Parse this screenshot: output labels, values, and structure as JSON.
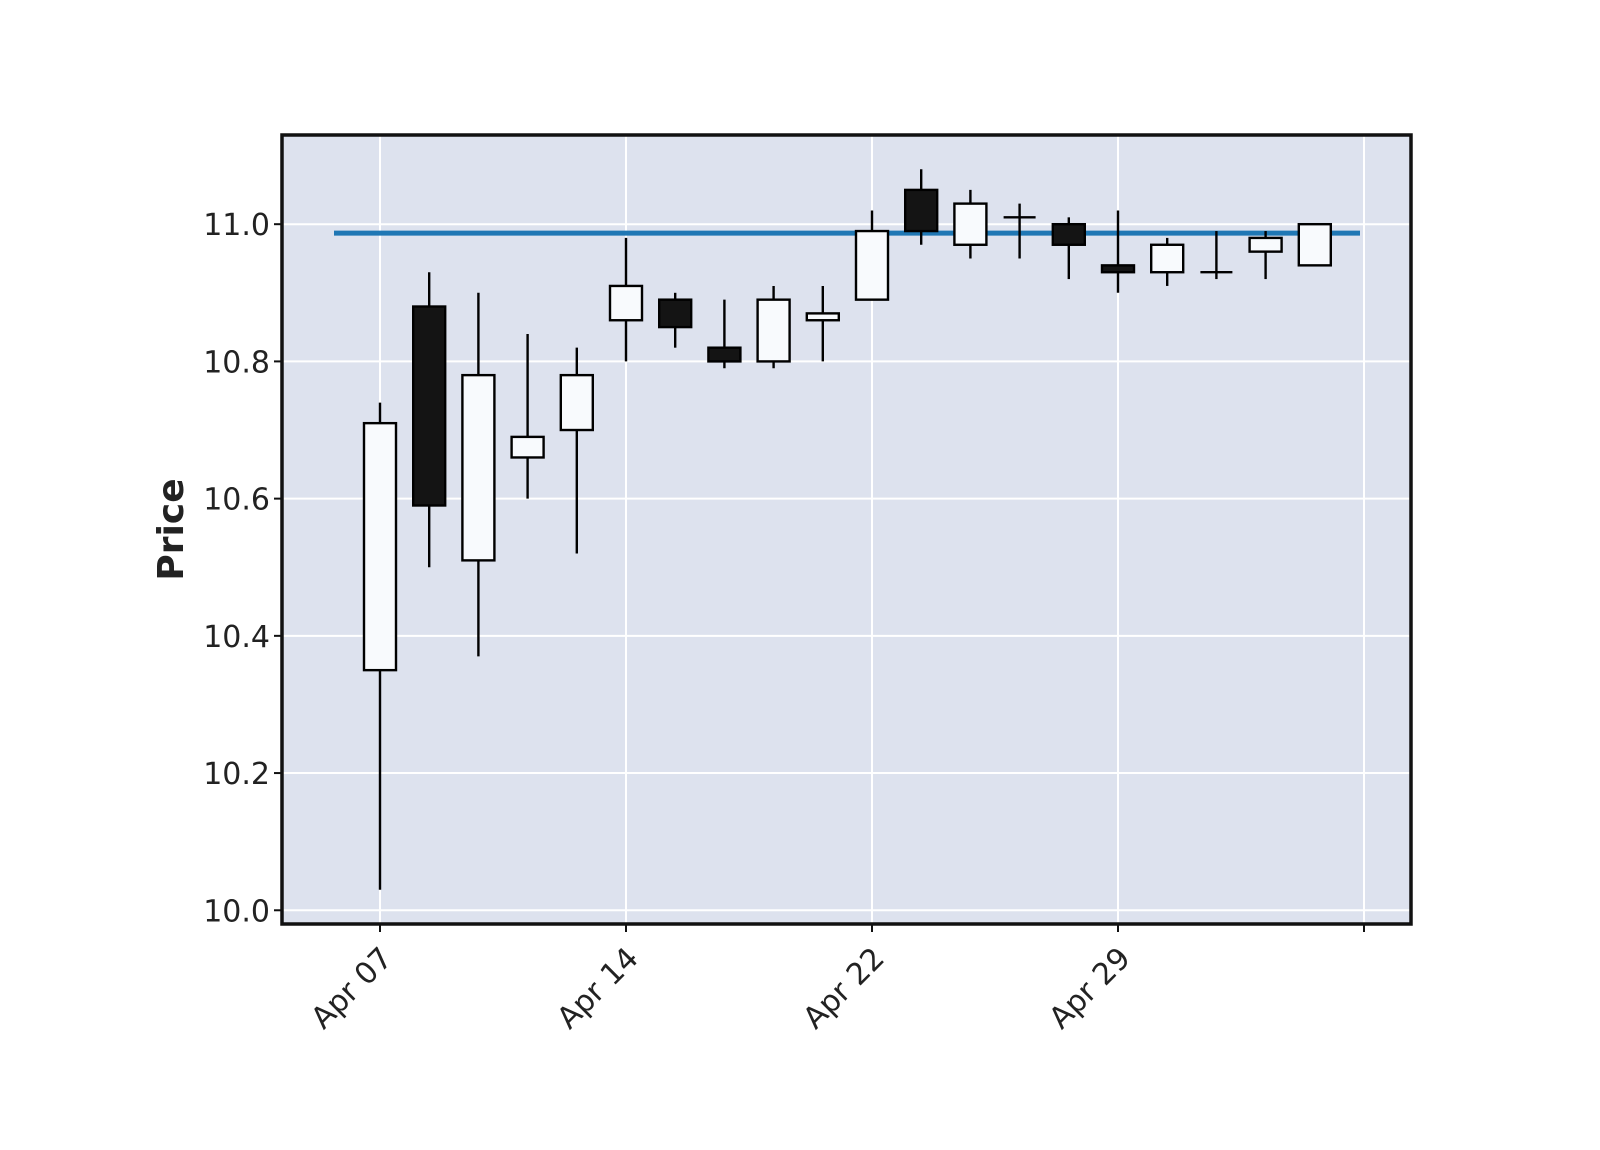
{
  "chart_data": {
    "type": "candlestick",
    "title": "",
    "xlabel": "",
    "ylabel": "Price",
    "ylim": [
      9.98,
      11.13
    ],
    "y_ticks": [
      {
        "value": 10.0,
        "label": "10.0"
      },
      {
        "value": 10.2,
        "label": "10.2"
      },
      {
        "value": 10.4,
        "label": "10.4"
      },
      {
        "value": 10.6,
        "label": "10.6"
      },
      {
        "value": 10.8,
        "label": "10.8"
      },
      {
        "value": 11.0,
        "label": "11.0"
      }
    ],
    "x_ticks": [
      {
        "index": 0,
        "label": "Apr 07"
      },
      {
        "index": 5,
        "label": "Apr 14"
      },
      {
        "index": 10,
        "label": "Apr 22"
      },
      {
        "index": 15,
        "label": "Apr 29"
      },
      {
        "index": 20,
        "label": ""
      }
    ],
    "candles": [
      {
        "date": "Apr 07",
        "open": 10.35,
        "high": 10.74,
        "low": 10.03,
        "close": 10.71
      },
      {
        "date": "Apr 08",
        "open": 10.88,
        "high": 10.93,
        "low": 10.5,
        "close": 10.59
      },
      {
        "date": "Apr 09",
        "open": 10.51,
        "high": 10.9,
        "low": 10.37,
        "close": 10.78
      },
      {
        "date": "Apr 10",
        "open": 10.66,
        "high": 10.84,
        "low": 10.6,
        "close": 10.69
      },
      {
        "date": "Apr 11",
        "open": 10.7,
        "high": 10.82,
        "low": 10.52,
        "close": 10.78
      },
      {
        "date": "Apr 14",
        "open": 10.86,
        "high": 10.98,
        "low": 10.8,
        "close": 10.91
      },
      {
        "date": "Apr 15",
        "open": 10.89,
        "high": 10.9,
        "low": 10.82,
        "close": 10.85
      },
      {
        "date": "Apr 16",
        "open": 10.82,
        "high": 10.89,
        "low": 10.79,
        "close": 10.8
      },
      {
        "date": "Apr 17",
        "open": 10.8,
        "high": 10.91,
        "low": 10.79,
        "close": 10.89
      },
      {
        "date": "Apr 18",
        "open": 10.86,
        "high": 10.91,
        "low": 10.8,
        "close": 10.87
      },
      {
        "date": "Apr 22",
        "open": 10.89,
        "high": 11.02,
        "low": 10.89,
        "close": 10.99
      },
      {
        "date": "Apr 23",
        "open": 11.05,
        "high": 11.08,
        "low": 10.97,
        "close": 10.99
      },
      {
        "date": "Apr 24",
        "open": 10.97,
        "high": 11.05,
        "low": 10.95,
        "close": 11.03
      },
      {
        "date": "Apr 25",
        "open": 11.01,
        "high": 11.03,
        "low": 10.95,
        "close": 11.01
      },
      {
        "date": "Apr 28",
        "open": 11.0,
        "high": 11.01,
        "low": 10.92,
        "close": 10.97
      },
      {
        "date": "Apr 29",
        "open": 10.94,
        "high": 11.02,
        "low": 10.9,
        "close": 10.93
      },
      {
        "date": "Apr 30",
        "open": 10.93,
        "high": 10.98,
        "low": 10.91,
        "close": 10.97
      },
      {
        "date": "May 01",
        "open": 10.93,
        "high": 10.99,
        "low": 10.92,
        "close": 10.93
      },
      {
        "date": "May 02",
        "open": 10.96,
        "high": 10.99,
        "low": 10.92,
        "close": 10.98
      },
      {
        "date": "May 05",
        "open": 10.94,
        "high": 11.0,
        "low": 10.94,
        "close": 11.0
      }
    ],
    "hline": {
      "value": 10.987,
      "color": "#1f77b4"
    },
    "colors": {
      "plot_bg": "#dde2ee",
      "grid": "#ffffff",
      "up_fill": "#f8fafd",
      "down_fill": "#141414",
      "edge": "#000000"
    },
    "grid": true
  }
}
